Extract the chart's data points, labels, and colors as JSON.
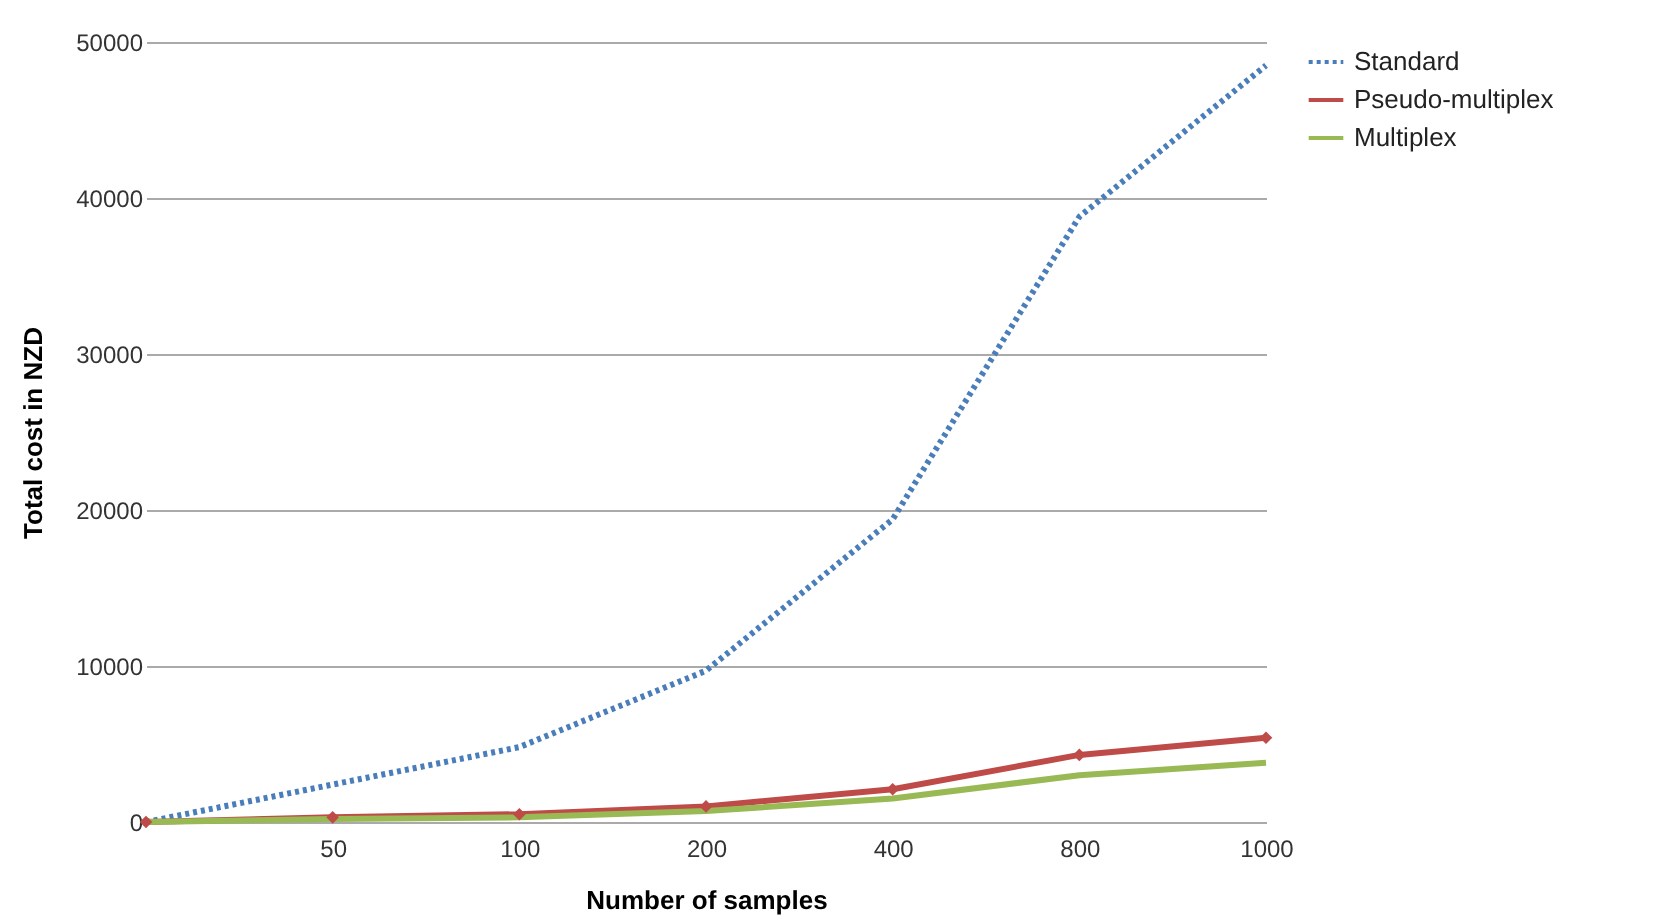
{
  "chart_data": {
    "type": "line",
    "xlabel": "Number of samples",
    "ylabel": "Total cost in NZD",
    "categories": [
      null,
      "50",
      "100",
      "200",
      "400",
      "800",
      "1000"
    ],
    "series": [
      {
        "name": "Standard",
        "color": "#4a7ebb",
        "line_style": "dotted",
        "marker": "none",
        "values": [
          0,
          2400,
          4800,
          9700,
          19400,
          38800,
          48500
        ]
      },
      {
        "name": "Pseudo-multiplex",
        "color": "#be4b48",
        "line_style": "solid",
        "marker": "diamond",
        "values": [
          0,
          300,
          500,
          1000,
          2100,
          4300,
          5400
        ]
      },
      {
        "name": "Multiplex",
        "color": "#98b954",
        "line_style": "solid",
        "marker": "none",
        "values": [
          0,
          200,
          300,
          700,
          1500,
          3000,
          3800
        ]
      }
    ],
    "ylim": [
      0,
      50000
    ],
    "yticks": [
      0,
      10000,
      20000,
      30000,
      40000,
      50000
    ],
    "grid": "y",
    "legend": "right"
  }
}
